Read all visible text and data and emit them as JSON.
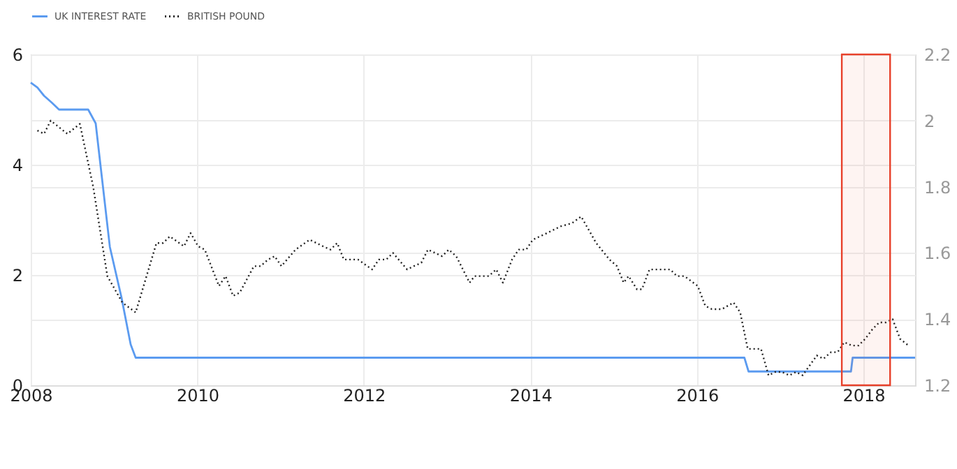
{
  "chart_data": {
    "type": "line",
    "legend": "top left",
    "grid": true,
    "xlim": [
      2008,
      2018.62
    ],
    "xticks": [
      2008,
      2010,
      2012,
      2014,
      2016,
      2018
    ],
    "ylim": [
      0,
      6
    ],
    "yticks": [
      0,
      2,
      4,
      6
    ],
    "y2lim": [
      1.2,
      2.2
    ],
    "y2ticks": [
      1.2,
      1.4,
      1.6,
      1.8,
      2,
      2.2
    ],
    "series": [
      {
        "name": "UK INTEREST RATE",
        "color": "#5b9bf0",
        "line_style": "solid",
        "x": [
          2008.0,
          2008.08,
          2008.16,
          2008.25,
          2008.34,
          2008.69,
          2008.78,
          2008.95,
          2009.09,
          2009.2,
          2009.26,
          2016.57,
          2016.62,
          2017.85,
          2017.87,
          2018.62
        ],
        "values": [
          5.49,
          5.4,
          5.25,
          5.13,
          5.0,
          5.0,
          4.75,
          2.51,
          1.59,
          0.74,
          0.5,
          0.5,
          0.25,
          0.25,
          0.5,
          0.5
        ]
      },
      {
        "name": "BRITISH POUND",
        "color": "#222222",
        "line_style": "dotted",
        "axis": "y2",
        "x": [
          2008.08,
          2008.16,
          2008.24,
          2008.44,
          2008.59,
          2008.75,
          2008.92,
          2009.1,
          2009.26,
          2009.51,
          2009.59,
          2009.67,
          2009.84,
          2009.92,
          2010.01,
          2010.09,
          2010.26,
          2010.34,
          2010.43,
          2010.51,
          2010.68,
          2010.76,
          2010.85,
          2010.93,
          2011.01,
          2011.18,
          2011.35,
          2011.51,
          2011.6,
          2011.68,
          2011.76,
          2011.93,
          2012.1,
          2012.18,
          2012.27,
          2012.35,
          2012.52,
          2012.6,
          2012.69,
          2012.77,
          2012.94,
          2013.02,
          2013.11,
          2013.27,
          2013.33,
          2013.42,
          2013.5,
          2013.59,
          2013.67,
          2013.78,
          2013.86,
          2013.95,
          2014.03,
          2014.2,
          2014.36,
          2014.5,
          2014.61,
          2014.79,
          2014.95,
          2015.04,
          2015.12,
          2015.18,
          2015.28,
          2015.34,
          2015.43,
          2015.51,
          2015.68,
          2015.76,
          2015.85,
          2016.01,
          2016.1,
          2016.18,
          2016.3,
          2016.44,
          2016.52,
          2016.61,
          2016.77,
          2016.86,
          2016.94,
          2017.02,
          2017.11,
          2017.19,
          2017.27,
          2017.44,
          2017.52,
          2017.61,
          2017.69,
          2017.77,
          2017.86,
          2017.94,
          2018.02,
          2018.11,
          2018.19,
          2018.27,
          2018.35,
          2018.44,
          2018.54
        ],
        "values": [
          1.97,
          1.96,
          2.0,
          1.96,
          1.99,
          1.8,
          1.53,
          1.45,
          1.42,
          1.63,
          1.63,
          1.65,
          1.62,
          1.66,
          1.62,
          1.61,
          1.5,
          1.53,
          1.47,
          1.48,
          1.56,
          1.56,
          1.58,
          1.59,
          1.56,
          1.61,
          1.64,
          1.62,
          1.61,
          1.63,
          1.58,
          1.58,
          1.55,
          1.58,
          1.58,
          1.6,
          1.55,
          1.56,
          1.57,
          1.61,
          1.59,
          1.61,
          1.59,
          1.51,
          1.53,
          1.53,
          1.53,
          1.55,
          1.51,
          1.58,
          1.61,
          1.61,
          1.64,
          1.66,
          1.68,
          1.69,
          1.71,
          1.63,
          1.58,
          1.56,
          1.51,
          1.53,
          1.49,
          1.49,
          1.55,
          1.55,
          1.55,
          1.53,
          1.53,
          1.5,
          1.44,
          1.43,
          1.43,
          1.45,
          1.42,
          1.31,
          1.31,
          1.23,
          1.24,
          1.24,
          1.23,
          1.24,
          1.23,
          1.29,
          1.28,
          1.3,
          1.3,
          1.33,
          1.32,
          1.32,
          1.34,
          1.37,
          1.39,
          1.39,
          1.4,
          1.34,
          1.32
        ]
      }
    ],
    "bands": [
      {
        "axis": "x",
        "from": 2017.74,
        "to": 2018.32,
        "color": "#e8402a"
      }
    ]
  }
}
